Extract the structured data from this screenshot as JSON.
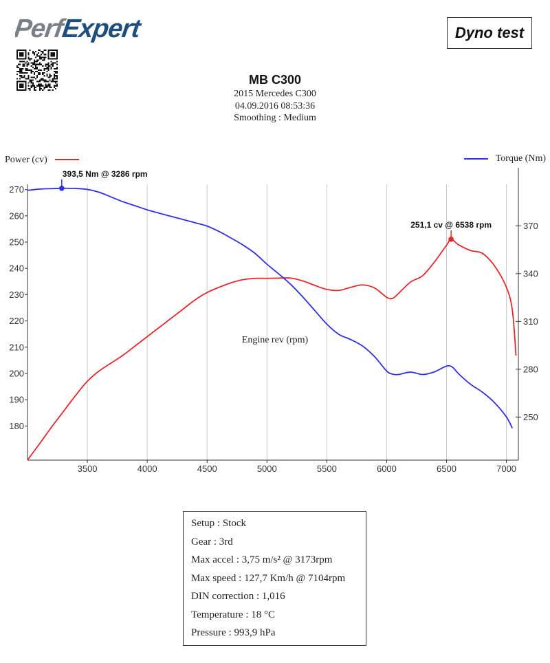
{
  "header": {
    "logo_text": "PerfExpert",
    "badge": "Dyno test",
    "title": "MB C300",
    "vehicle": "2015 Mercedes C300",
    "datetime": "04.09.2016 08:53:36",
    "smoothing": "Smoothing : Medium"
  },
  "qr_icon": "qr-code-icon",
  "colors": {
    "power": "#e8262a",
    "torque": "#2f2fe6",
    "grid": "#c8c8c8",
    "logo_gray": "#7a8088",
    "logo_blue": "#1f4e7f"
  },
  "info": {
    "lines": [
      "Setup : Stock",
      "Gear : 3rd",
      "Max accel : 3,75 m/s² @ 3173rpm",
      "Max speed : 127,7 Km/h @ 7104rpm",
      "DIN correction : 1,016",
      "Temperature : 18 °C",
      "Pressure : 993,9 hPa"
    ]
  },
  "chart_data": {
    "type": "line",
    "xlabel": "Engine rev (rpm)",
    "ylabel_left": "Power (cv)",
    "ylabel_right": "Torque (Nm)",
    "xlim": [
      3000,
      7100
    ],
    "x_ticks": [
      3500,
      4000,
      4500,
      5000,
      5500,
      6000,
      6500,
      7000
    ],
    "ylim_left": [
      167,
      272
    ],
    "y_ticks_left": [
      180,
      190,
      200,
      210,
      220,
      230,
      240,
      250,
      260,
      270
    ],
    "ylim_right": [
      223,
      396
    ],
    "y_ticks_right": [
      250,
      280,
      310,
      340,
      370
    ],
    "grid": "vertical",
    "legend": "top",
    "series": [
      {
        "name": "Power (cv)",
        "axis": "left",
        "x": [
          3000,
          3100,
          3200,
          3300,
          3400,
          3500,
          3600,
          3700,
          3800,
          3900,
          4000,
          4100,
          4200,
          4300,
          4400,
          4500,
          4600,
          4700,
          4800,
          4900,
          5000,
          5100,
          5200,
          5300,
          5400,
          5500,
          5600,
          5700,
          5800,
          5900,
          6000,
          6050,
          6100,
          6200,
          6300,
          6400,
          6500,
          6538,
          6600,
          6700,
          6800,
          6900,
          7000,
          7050,
          7080
        ],
        "values": [
          167,
          173.2,
          179.5,
          185.5,
          191.5,
          197,
          201,
          204,
          207,
          210.5,
          214,
          217.5,
          221,
          224.5,
          228,
          230.8,
          232.8,
          234.5,
          235.7,
          236.2,
          236.2,
          236.3,
          236.3,
          235.2,
          233.5,
          232,
          231.6,
          232.8,
          233.7,
          232.5,
          229,
          228.6,
          230.5,
          234.8,
          237.2,
          242.5,
          248.8,
          251.1,
          249,
          246.8,
          245.7,
          241,
          232.8,
          224,
          206.8
        ]
      },
      {
        "name": "Torque (Nm)",
        "axis": "right",
        "x": [
          3000,
          3100,
          3200,
          3286,
          3400,
          3500,
          3600,
          3700,
          3800,
          3900,
          4000,
          4100,
          4200,
          4300,
          4400,
          4500,
          4600,
          4700,
          4800,
          4900,
          5000,
          5100,
          5200,
          5300,
          5400,
          5500,
          5600,
          5700,
          5800,
          5900,
          6000,
          6050,
          6100,
          6200,
          6300,
          6400,
          6500,
          6550,
          6600,
          6700,
          6800,
          6900,
          7000,
          7050
        ],
        "values": [
          392.2,
          393,
          393.3,
          393.5,
          393.4,
          392.8,
          391,
          388,
          385,
          382.5,
          380,
          377.9,
          375.9,
          373.9,
          371.9,
          369.8,
          366.4,
          362.3,
          357.9,
          352.7,
          345.9,
          339.7,
          333.1,
          325.3,
          316.8,
          308.3,
          301.9,
          298.6,
          294.5,
          287.8,
          278.9,
          276.9,
          276.7,
          278.2,
          276.7,
          278.4,
          282,
          281.3,
          277.2,
          270.6,
          265.6,
          259.1,
          250.1,
          243
        ]
      }
    ],
    "annotations": [
      {
        "series": "Torque (Nm)",
        "x": 3286,
        "value": 393.5,
        "label": "393,5 Nm @ 3286 rpm"
      },
      {
        "series": "Power (cv)",
        "x": 6538,
        "value": 251.1,
        "label": "251,1 cv @ 6538 rpm"
      }
    ]
  }
}
